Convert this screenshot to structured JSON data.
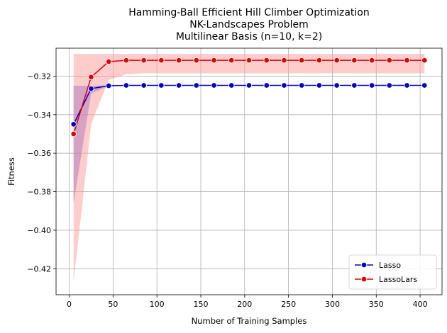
{
  "chart_data": {
    "type": "line",
    "title": [
      "Hamming-Ball Efficient Hill Climber Optimization",
      "NK-Landscapes Problem",
      "Multilinear Basis (n=10, k=2)"
    ],
    "xlabel": "Number of Training Samples",
    "ylabel": "Fitness",
    "xlim": [
      -15,
      425
    ],
    "ylim": [
      -0.4335,
      -0.3055
    ],
    "xticks": [
      0,
      50,
      100,
      150,
      200,
      250,
      300,
      350,
      400
    ],
    "yticks": [
      -0.42,
      -0.4,
      -0.38,
      -0.36,
      -0.34,
      -0.32
    ],
    "grid": true,
    "legend_position": "lower-right",
    "x": [
      5,
      25,
      45,
      65,
      85,
      105,
      125,
      145,
      165,
      185,
      205,
      225,
      245,
      265,
      285,
      305,
      325,
      345,
      365,
      385,
      405
    ],
    "series": [
      {
        "name": "Lasso",
        "color": "#0000cc",
        "band_color": "#5555dd",
        "values": [
          -0.345,
          -0.3265,
          -0.325,
          -0.3248,
          -0.3248,
          -0.3248,
          -0.3248,
          -0.3248,
          -0.3248,
          -0.3248,
          -0.3248,
          -0.3248,
          -0.3248,
          -0.3248,
          -0.3248,
          -0.3248,
          -0.3248,
          -0.3248,
          -0.3248,
          -0.3248,
          -0.3248
        ],
        "lower": [
          -0.386,
          -0.329,
          -0.3252,
          -0.3248,
          -0.3248,
          -0.3248,
          -0.3248,
          -0.3248,
          -0.3248,
          -0.3248,
          -0.3248,
          -0.3248,
          -0.3248,
          -0.3248,
          -0.3248,
          -0.3248,
          -0.3248,
          -0.3248,
          -0.3248,
          -0.3248,
          -0.3248
        ],
        "upper": [
          -0.325,
          -0.325,
          -0.3248,
          -0.3248,
          -0.3248,
          -0.3248,
          -0.3248,
          -0.3248,
          -0.3248,
          -0.3248,
          -0.3248,
          -0.3248,
          -0.3248,
          -0.3248,
          -0.3248,
          -0.3248,
          -0.3248,
          -0.3248,
          -0.3248,
          -0.3248,
          -0.3248
        ]
      },
      {
        "name": "LassoLars",
        "color": "#dd0000",
        "band_color": "#ff9999",
        "values": [
          -0.35,
          -0.3205,
          -0.3125,
          -0.3118,
          -0.3118,
          -0.3118,
          -0.3118,
          -0.3118,
          -0.3118,
          -0.3118,
          -0.3118,
          -0.3118,
          -0.3118,
          -0.3118,
          -0.3118,
          -0.3118,
          -0.3118,
          -0.3118,
          -0.3118,
          -0.3118,
          -0.3118
        ],
        "lower": [
          -0.427,
          -0.345,
          -0.322,
          -0.319,
          -0.3185,
          -0.3185,
          -0.3185,
          -0.3185,
          -0.3185,
          -0.3185,
          -0.3185,
          -0.3185,
          -0.3185,
          -0.3185,
          -0.3185,
          -0.3185,
          -0.3185,
          -0.3185,
          -0.3185,
          -0.3185,
          -0.3185
        ],
        "upper": [
          -0.3085,
          -0.3085,
          -0.3085,
          -0.3085,
          -0.3085,
          -0.3085,
          -0.3085,
          -0.3085,
          -0.3085,
          -0.3085,
          -0.3085,
          -0.3085,
          -0.3085,
          -0.3085,
          -0.3085,
          -0.3085,
          -0.3085,
          -0.3085,
          -0.3085,
          -0.3085,
          -0.3085
        ]
      }
    ]
  }
}
